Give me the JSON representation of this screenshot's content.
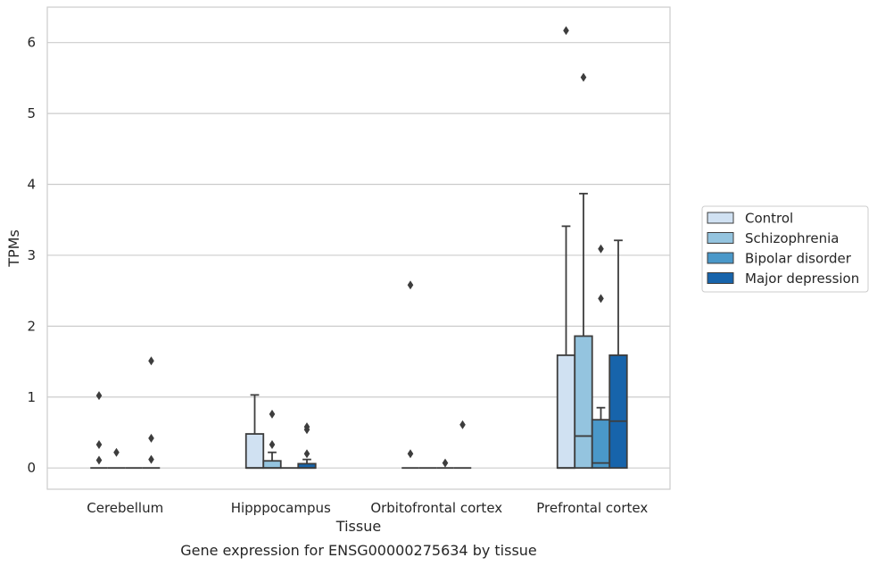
{
  "chart_data": {
    "type": "box",
    "title": "",
    "caption": "Gene expression for ENSG00000275634 by tissue",
    "xlabel": "Tissue",
    "ylabel": "TPMs",
    "ylim": [
      -0.3,
      6.5
    ],
    "yticks": [
      "0",
      "1",
      "2",
      "3",
      "4",
      "5",
      "6"
    ],
    "grid": "horizontal",
    "legend_position": "right",
    "categories": [
      "Cerebellum",
      "Hipppocampus",
      "Orbitofrontal cortex",
      "Prefrontal cortex"
    ],
    "series": [
      {
        "name": "Control",
        "color": "#d0e1f2",
        "boxes": [
          {
            "q1": 0,
            "median": 0,
            "q3": 0,
            "whisker_low": 0,
            "whisker_high": 0,
            "outliers": [
              1.02,
              0.33,
              0.11
            ]
          },
          {
            "q1": 0,
            "median": 0,
            "q3": 0.48,
            "whisker_low": 0,
            "whisker_high": 1.03,
            "outliers": []
          },
          {
            "q1": 0,
            "median": 0,
            "q3": 0,
            "whisker_low": 0,
            "whisker_high": 0,
            "outliers": [
              2.58,
              0.2
            ]
          },
          {
            "q1": 0,
            "median": 0,
            "q3": 1.59,
            "whisker_low": 0,
            "whisker_high": 3.41,
            "outliers": [
              6.17
            ]
          }
        ]
      },
      {
        "name": "Schizophrenia",
        "color": "#94c4df",
        "boxes": [
          {
            "q1": 0,
            "median": 0,
            "q3": 0,
            "whisker_low": 0,
            "whisker_high": 0,
            "outliers": [
              0.22
            ]
          },
          {
            "q1": 0,
            "median": 0,
            "q3": 0.1,
            "whisker_low": 0,
            "whisker_high": 0.22,
            "outliers": [
              0.76,
              0.33
            ]
          },
          {
            "q1": 0,
            "median": 0,
            "q3": 0,
            "whisker_low": 0,
            "whisker_high": 0,
            "outliers": []
          },
          {
            "q1": 0,
            "median": 0.45,
            "q3": 1.86,
            "whisker_low": 0,
            "whisker_high": 3.87,
            "outliers": [
              5.51
            ]
          }
        ]
      },
      {
        "name": "Bipolar disorder",
        "color": "#4a98c9",
        "boxes": [
          {
            "q1": 0,
            "median": 0,
            "q3": 0,
            "whisker_low": 0,
            "whisker_high": 0,
            "outliers": []
          },
          {
            "q1": 0,
            "median": 0,
            "q3": 0,
            "whisker_low": 0,
            "whisker_high": 0,
            "outliers": []
          },
          {
            "q1": 0,
            "median": 0,
            "q3": 0,
            "whisker_low": 0,
            "whisker_high": 0,
            "outliers": [
              0.07
            ]
          },
          {
            "q1": 0,
            "median": 0.07,
            "q3": 0.68,
            "whisker_low": 0,
            "whisker_high": 0.85,
            "outliers": [
              3.09,
              2.39
            ]
          }
        ]
      },
      {
        "name": "Major depression",
        "color": "#1764ab",
        "boxes": [
          {
            "q1": 0,
            "median": 0,
            "q3": 0,
            "whisker_low": 0,
            "whisker_high": 0,
            "outliers": [
              1.51,
              0.42,
              0.12
            ]
          },
          {
            "q1": 0,
            "median": 0,
            "q3": 0.06,
            "whisker_low": 0,
            "whisker_high": 0.12,
            "outliers": [
              0.58,
              0.54,
              0.2
            ]
          },
          {
            "q1": 0,
            "median": 0,
            "q3": 0,
            "whisker_low": 0,
            "whisker_high": 0,
            "outliers": [
              0.61
            ]
          },
          {
            "q1": 0,
            "median": 0.66,
            "q3": 1.59,
            "whisker_low": 0,
            "whisker_high": 3.21,
            "outliers": []
          }
        ]
      }
    ]
  }
}
